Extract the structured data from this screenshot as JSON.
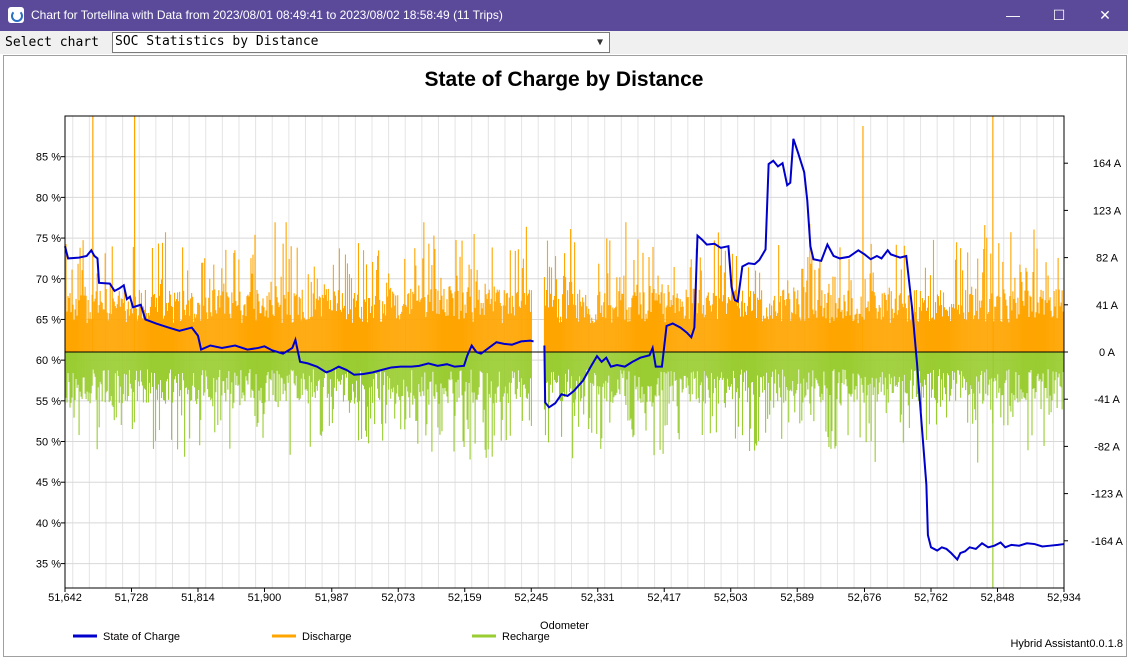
{
  "window": {
    "title": "Chart for Tortellina with Data from 2023/08/01 08:49:41 to 2023/08/02 18:58:49 (11 Trips)",
    "minimize_glyph": "—",
    "maximize_glyph": "☐",
    "close_glyph": "✕"
  },
  "toolbar": {
    "select_label": "Select chart",
    "selected_chart": "SOC Statistics by Distance"
  },
  "footer": {
    "version": "Hybrid Assistant0.0.1.8"
  },
  "colors": {
    "soc": "#0000cc",
    "discharge": "#ffa500",
    "recharge": "#9acd32",
    "titlebar": "#5b4a9a"
  },
  "chart_data": {
    "type": "line",
    "title": "State of Charge by Distance",
    "xlabel": "Odometer",
    "x_ticks": [
      "51,642",
      "51,728",
      "51,814",
      "51,900",
      "51,987",
      "52,073",
      "52,159",
      "52,245",
      "52,331",
      "52,417",
      "52,503",
      "52,589",
      "52,676",
      "52,762",
      "52,848",
      "52,934"
    ],
    "xlim": [
      51642,
      52934
    ],
    "y_left_ticks": [
      "85 %",
      "80 %",
      "75 %",
      "70 %",
      "65 %",
      "60 %",
      "55 %",
      "50 %",
      "45 %",
      "40 %",
      "35 %"
    ],
    "y_left_lim": [
      32,
      90
    ],
    "y_right_ticks": [
      "164 A",
      "123 A",
      "82 A",
      "41 A",
      "0 A",
      "-41 A",
      "-82 A",
      "-123 A",
      "-164 A"
    ],
    "y_right_lim": [
      -205,
      205
    ],
    "legend_position": "bottom",
    "series": [
      {
        "name": "State of Charge",
        "axis": "left",
        "points": [
          [
            51642,
            74
          ],
          [
            51646,
            72.5
          ],
          [
            51660,
            72.6
          ],
          [
            51670,
            72.8
          ],
          [
            51676,
            73.5
          ],
          [
            51680,
            72.8
          ],
          [
            51684,
            72.5
          ],
          [
            51686,
            69.5
          ],
          [
            51700,
            69.4
          ],
          [
            51706,
            68.5
          ],
          [
            51712,
            68.8
          ],
          [
            51718,
            69.2
          ],
          [
            51722,
            67.5
          ],
          [
            51726,
            67.8
          ],
          [
            51730,
            66.5
          ],
          [
            51740,
            66.8
          ],
          [
            51746,
            65
          ],
          [
            51760,
            64.5
          ],
          [
            51776,
            64
          ],
          [
            51790,
            63.6
          ],
          [
            51806,
            64
          ],
          [
            51814,
            63
          ],
          [
            51818,
            61.3
          ],
          [
            51830,
            61.8
          ],
          [
            51845,
            61.5
          ],
          [
            51862,
            61.8
          ],
          [
            51878,
            61.3
          ],
          [
            51892,
            61.5
          ],
          [
            51900,
            61.7
          ],
          [
            51910,
            61.2
          ],
          [
            51924,
            60.8
          ],
          [
            51936,
            61.5
          ],
          [
            51940,
            62.5
          ],
          [
            51946,
            59.8
          ],
          [
            51956,
            59.6
          ],
          [
            51968,
            59.2
          ],
          [
            51980,
            58.5
          ],
          [
            51986,
            58.7
          ],
          [
            51996,
            59.2
          ],
          [
            52006,
            58.8
          ],
          [
            52016,
            58.2
          ],
          [
            52028,
            58.3
          ],
          [
            52040,
            58.5
          ],
          [
            52052,
            58.8
          ],
          [
            52064,
            59.1
          ],
          [
            52076,
            59.2
          ],
          [
            52090,
            59.2
          ],
          [
            52100,
            59.3
          ],
          [
            52112,
            59.6
          ],
          [
            52124,
            59.3
          ],
          [
            52136,
            59.5
          ],
          [
            52146,
            59.2
          ],
          [
            52158,
            59.3
          ],
          [
            52162,
            60.5
          ],
          [
            52168,
            61.8
          ],
          [
            52174,
            61
          ],
          [
            52180,
            60.8
          ],
          [
            52190,
            61.5
          ],
          [
            52200,
            62.2
          ],
          [
            52210,
            62
          ],
          [
            52220,
            61.9
          ],
          [
            52232,
            62.3
          ],
          [
            52244,
            62.4
          ],
          [
            52248,
            62.3
          ],
          [
            52262,
            61.8
          ],
          [
            52263,
            54.8
          ],
          [
            52268,
            54.2
          ],
          [
            52276,
            54.7
          ],
          [
            52284,
            55.8
          ],
          [
            52292,
            55.6
          ],
          [
            52300,
            56.2
          ],
          [
            52312,
            57.5
          ],
          [
            52322,
            59.2
          ],
          [
            52330,
            60.5
          ],
          [
            52336,
            59.8
          ],
          [
            52342,
            60.3
          ],
          [
            52348,
            59.2
          ],
          [
            52356,
            59.4
          ],
          [
            52366,
            59.2
          ],
          [
            52376,
            59.8
          ],
          [
            52386,
            60.3
          ],
          [
            52398,
            60.6
          ],
          [
            52402,
            61.5
          ],
          [
            52406,
            59.2
          ],
          [
            52414,
            59.2
          ],
          [
            52420,
            64.2
          ],
          [
            52428,
            64.5
          ],
          [
            52438,
            64
          ],
          [
            52446,
            63.4
          ],
          [
            52452,
            62.8
          ],
          [
            52456,
            64
          ],
          [
            52460,
            75.3
          ],
          [
            52466,
            74.8
          ],
          [
            52472,
            74.2
          ],
          [
            52482,
            74.3
          ],
          [
            52490,
            73.8
          ],
          [
            52500,
            74
          ],
          [
            52504,
            69
          ],
          [
            52508,
            67.4
          ],
          [
            52512,
            67.2
          ],
          [
            52518,
            71.5
          ],
          [
            52526,
            71.9
          ],
          [
            52534,
            71.8
          ],
          [
            52540,
            72.3
          ],
          [
            52548,
            73.6
          ],
          [
            52552,
            84.1
          ],
          [
            52558,
            84.5
          ],
          [
            52564,
            83.8
          ],
          [
            52570,
            84.2
          ],
          [
            52576,
            81.5
          ],
          [
            52580,
            81.8
          ],
          [
            52584,
            87.2
          ],
          [
            52590,
            85.5
          ],
          [
            52594,
            84.3
          ],
          [
            52598,
            83.1
          ],
          [
            52602,
            79.6
          ],
          [
            52606,
            74
          ],
          [
            52610,
            72.4
          ],
          [
            52620,
            72.2
          ],
          [
            52628,
            74.2
          ],
          [
            52636,
            72.8
          ],
          [
            52644,
            72.5
          ],
          [
            52656,
            72.7
          ],
          [
            52668,
            73.5
          ],
          [
            52676,
            73
          ],
          [
            52684,
            72.4
          ],
          [
            52692,
            72.8
          ],
          [
            52698,
            72.5
          ],
          [
            52706,
            73.5
          ],
          [
            52710,
            73
          ],
          [
            52722,
            72.6
          ],
          [
            52730,
            72.8
          ],
          [
            52738,
            66
          ],
          [
            52744,
            59.5
          ],
          [
            52750,
            52
          ],
          [
            52756,
            44.7
          ],
          [
            52758,
            38.5
          ],
          [
            52762,
            37
          ],
          [
            52770,
            36.6
          ],
          [
            52776,
            37
          ],
          [
            52782,
            36.8
          ],
          [
            52788,
            36.3
          ],
          [
            52796,
            35.5
          ],
          [
            52800,
            36.3
          ],
          [
            52806,
            36.5
          ],
          [
            52812,
            37
          ],
          [
            52820,
            36.8
          ],
          [
            52828,
            37.5
          ],
          [
            52836,
            37
          ],
          [
            52844,
            37.2
          ],
          [
            52852,
            37.6
          ],
          [
            52858,
            37
          ],
          [
            52866,
            37.3
          ],
          [
            52876,
            37.2
          ],
          [
            52886,
            37.5
          ],
          [
            52896,
            37.4
          ],
          [
            52906,
            37.1
          ],
          [
            52916,
            37.2
          ],
          [
            52926,
            37.3
          ],
          [
            52934,
            37.4
          ]
        ]
      },
      {
        "name": "Discharge",
        "axis": "right",
        "range": [
          0,
          205
        ]
      },
      {
        "name": "Recharge",
        "axis": "right",
        "range": [
          -135,
          0
        ]
      }
    ]
  }
}
